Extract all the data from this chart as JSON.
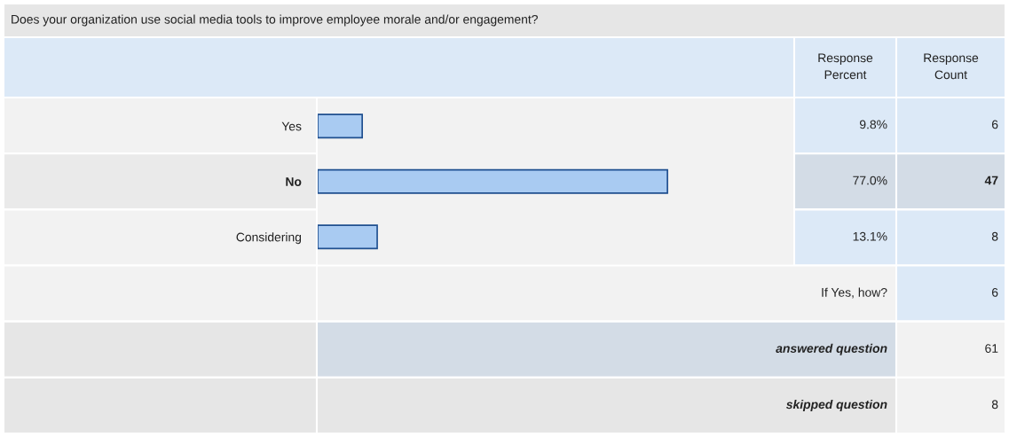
{
  "chart_data": {
    "type": "bar",
    "orientation": "horizontal",
    "title": "Does your organization use social media tools to improve employee morale and/or engagement?",
    "categories": [
      "Yes",
      "No",
      "Considering"
    ],
    "values": [
      9.8,
      77.0,
      13.1
    ],
    "value_labels": [
      "9.8%",
      "77.0%",
      "13.1%"
    ],
    "color": "#a9cbf2",
    "tick_labels": "y",
    "annotations": [
      "Response\nPercent",
      "Response\nCount",
      "6",
      "47",
      "8",
      "If Yes, how?",
      "6",
      "answered question",
      "61",
      "skipped question",
      "8"
    ]
  }
}
